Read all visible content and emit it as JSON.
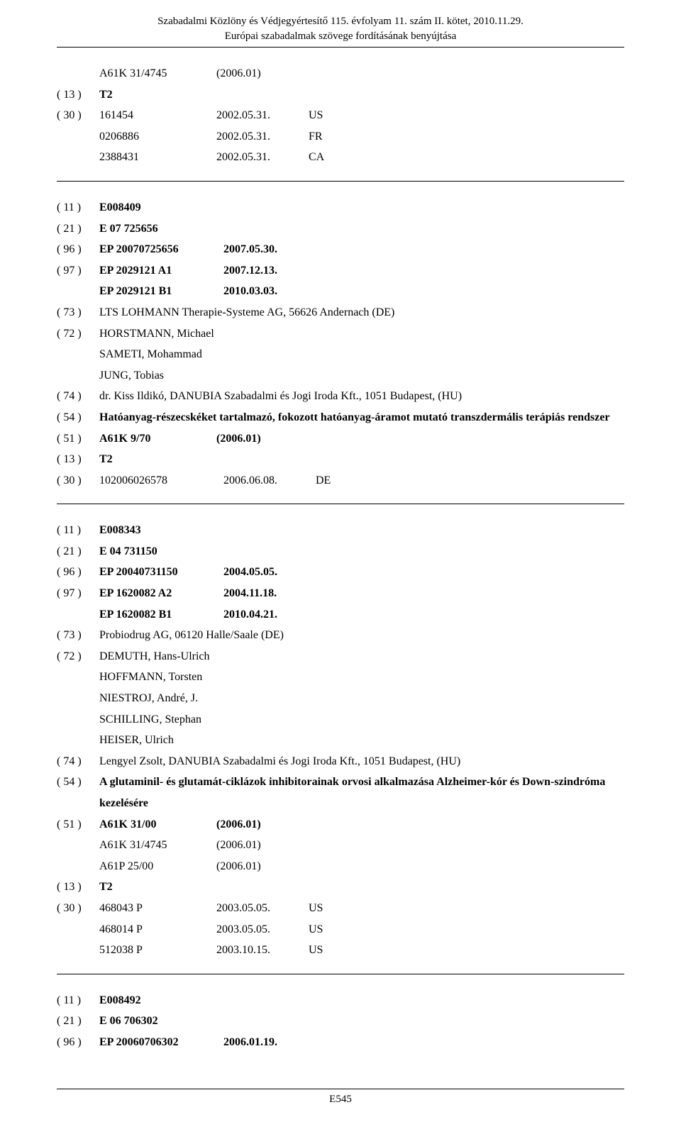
{
  "header": {
    "line1": "Szabadalmi Közlöny és Védjegyértesítő 115. évfolyam 11. szám II. kötet, 2010.11.29.",
    "line2": "Európai szabadalmak szövege fordításának benyújtása"
  },
  "footer": {
    "page": "E545"
  },
  "block1": {
    "rows": [
      {
        "code": "",
        "cells": [
          "A61K 31/4745",
          "(2006.01)"
        ],
        "indent": "code"
      },
      {
        "code": "( 13 )",
        "cells": [
          "T2"
        ],
        "bold": true
      },
      {
        "code": "( 30 )",
        "cells": [
          "161454",
          "2002.05.31.",
          "US"
        ]
      },
      {
        "code": "",
        "cells": [
          "0206886",
          "2002.05.31.",
          "FR"
        ],
        "indent": "code"
      },
      {
        "code": "",
        "cells": [
          "2388431",
          "2002.05.31.",
          "CA"
        ],
        "indent": "code"
      }
    ]
  },
  "block2": {
    "rows": [
      {
        "code": "( 11 )",
        "cells": [
          "E008409"
        ],
        "bold": true
      },
      {
        "code": "( 21 )",
        "cells": [
          "E 07 725656"
        ],
        "bold": true
      },
      {
        "code": "( 96 )",
        "cells": [
          "EP 20070725656",
          "2007.05.30."
        ],
        "bold": true,
        "wide": true
      },
      {
        "code": "( 97 )",
        "cells": [
          "EP 2029121 A1",
          "2007.12.13."
        ],
        "bold": true,
        "wide": true
      },
      {
        "code": "",
        "cells": [
          "EP 2029121 B1",
          "2010.03.03."
        ],
        "bold": true,
        "indent": "code",
        "wide": true
      },
      {
        "code": "( 73 )",
        "text": "LTS LOHMANN Therapie-Systeme AG, 56626 Andernach (DE)"
      },
      {
        "code": "( 72 )",
        "text": "HORSTMANN, Michael"
      },
      {
        "code": "",
        "text": "SAMETI, Mohammad",
        "indent": "code"
      },
      {
        "code": "",
        "text": "JUNG, Tobias",
        "indent": "code"
      },
      {
        "code": "( 74 )",
        "text": "dr. Kiss Ildikó, DANUBIA Szabadalmi és Jogi Iroda Kft., 1051 Budapest, (HU)"
      },
      {
        "code": "( 54 )",
        "text": "Hatóanyag-részecskéket tartalmazó, fokozott hatóanyag-áramot mutató transzdermális terápiás rendszer",
        "bold": true
      },
      {
        "code": "( 51 )",
        "cells": [
          "A61K 9/70",
          "(2006.01)"
        ],
        "bold": true
      },
      {
        "code": "( 13 )",
        "cells": [
          "T2"
        ],
        "bold": true
      },
      {
        "code": "( 30 )",
        "cells": [
          "102006026578",
          "2006.06.08.",
          "DE"
        ],
        "wide": true
      }
    ]
  },
  "block3": {
    "rows": [
      {
        "code": "( 11 )",
        "cells": [
          "E008343"
        ],
        "bold": true
      },
      {
        "code": "( 21 )",
        "cells": [
          "E 04 731150"
        ],
        "bold": true
      },
      {
        "code": "( 96 )",
        "cells": [
          "EP 20040731150",
          "2004.05.05."
        ],
        "bold": true,
        "wide": true
      },
      {
        "code": "( 97 )",
        "cells": [
          "EP 1620082 A2",
          "2004.11.18."
        ],
        "bold": true,
        "wide": true
      },
      {
        "code": "",
        "cells": [
          "EP 1620082 B1",
          "2010.04.21."
        ],
        "bold": true,
        "indent": "code",
        "wide": true
      },
      {
        "code": "( 73 )",
        "text": "Probiodrug AG, 06120 Halle/Saale (DE)"
      },
      {
        "code": "( 72 )",
        "text": "DEMUTH, Hans-Ulrich"
      },
      {
        "code": "",
        "text": "HOFFMANN, Torsten",
        "indent": "code"
      },
      {
        "code": "",
        "text": "NIESTROJ, André, J.",
        "indent": "code"
      },
      {
        "code": "",
        "text": "SCHILLING, Stephan",
        "indent": "code"
      },
      {
        "code": "",
        "text": "HEISER, Ulrich",
        "indent": "code"
      },
      {
        "code": "( 74 )",
        "text": "Lengyel Zsolt, DANUBIA Szabadalmi és Jogi Iroda Kft., 1051 Budapest, (HU)"
      },
      {
        "code": "( 54 )",
        "text": "A glutaminil- és glutamát-ciklázok inhibitorainak orvosi alkalmazása Alzheimer-kór és Down-szindróma kezelésére",
        "bold": true
      },
      {
        "code": "( 51 )",
        "cells": [
          "A61K 31/00",
          "(2006.01)"
        ],
        "bold": true
      },
      {
        "code": "",
        "cells": [
          "A61K 31/4745",
          "(2006.01)"
        ],
        "indent": "code"
      },
      {
        "code": "",
        "cells": [
          "A61P 25/00",
          "(2006.01)"
        ],
        "indent": "code"
      },
      {
        "code": "( 13 )",
        "cells": [
          "T2"
        ],
        "bold": true
      },
      {
        "code": "( 30 )",
        "cells": [
          "468043 P",
          "2003.05.05.",
          "US"
        ]
      },
      {
        "code": "",
        "cells": [
          "468014 P",
          "2003.05.05.",
          "US"
        ],
        "indent": "code"
      },
      {
        "code": "",
        "cells": [
          "512038 P",
          "2003.10.15.",
          "US"
        ],
        "indent": "code"
      }
    ]
  },
  "block4": {
    "rows": [
      {
        "code": "( 11 )",
        "cells": [
          "E008492"
        ],
        "bold": true
      },
      {
        "code": "( 21 )",
        "cells": [
          "E 06 706302"
        ],
        "bold": true
      },
      {
        "code": "( 96 )",
        "cells": [
          "EP 20060706302",
          "2006.01.19."
        ],
        "bold": true,
        "wide": true
      }
    ]
  }
}
